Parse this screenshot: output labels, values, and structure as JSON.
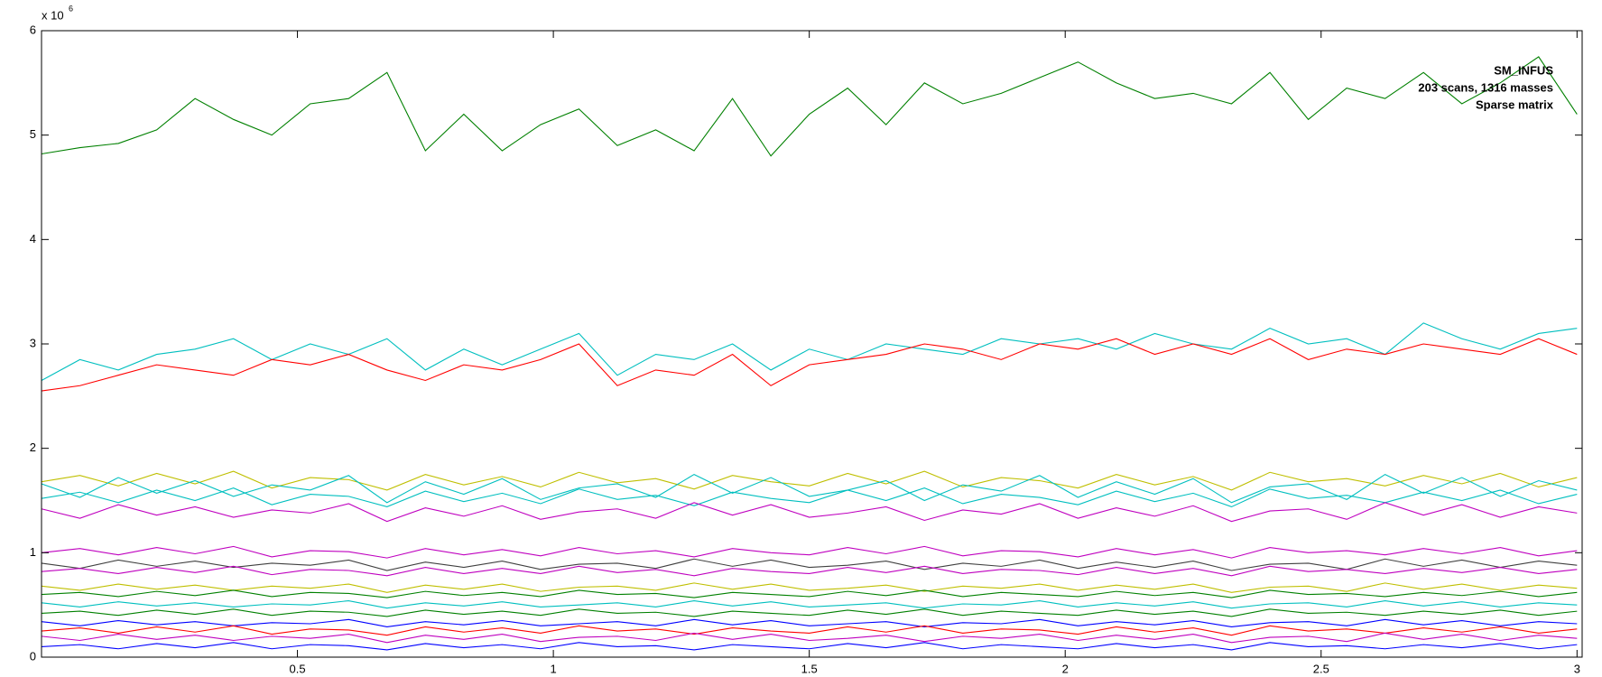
{
  "chart_data": {
    "type": "line",
    "axis_multiplier": {
      "base": "x 10",
      "power": "6"
    },
    "annotations": [
      "SM_INFUS",
      "203 scans, 1316 masses",
      "Sparse matrix"
    ],
    "x": [
      0,
      0.075,
      0.15,
      0.225,
      0.3,
      0.375,
      0.45,
      0.525,
      0.6,
      0.675,
      0.75,
      0.825,
      0.9,
      0.975,
      1.05,
      1.125,
      1.2,
      1.275,
      1.35,
      1.425,
      1.5,
      1.575,
      1.65,
      1.725,
      1.8,
      1.875,
      1.95,
      2.025,
      2.1,
      2.175,
      2.25,
      2.325,
      2.4,
      2.475,
      2.55,
      2.625,
      2.7,
      2.775,
      2.85,
      2.925,
      3.0
    ],
    "xlim": [
      0,
      3.01
    ],
    "xticks": [
      0.5,
      1,
      1.5,
      2,
      2.5,
      3
    ],
    "ylim": [
      0,
      6
    ],
    "yticks": [
      0,
      1,
      2,
      3,
      4,
      5,
      6
    ],
    "series": [
      {
        "color": "#008000",
        "values": [
          4.82,
          4.88,
          4.92,
          5.05,
          5.35,
          5.15,
          5.0,
          5.3,
          5.35,
          5.6,
          4.85,
          5.2,
          4.85,
          5.1,
          5.25,
          4.9,
          5.05,
          4.85,
          5.35,
          4.8,
          5.2,
          5.45,
          5.1,
          5.5,
          5.3,
          5.4,
          5.55,
          5.7,
          5.5,
          5.35,
          5.4,
          5.3,
          5.6,
          5.15,
          5.45,
          5.35,
          5.6,
          5.3,
          5.5,
          5.75,
          5.2
        ]
      },
      {
        "color": "#00bfbf",
        "values": [
          2.65,
          2.85,
          2.75,
          2.9,
          2.95,
          3.05,
          2.85,
          3.0,
          2.9,
          3.05,
          2.75,
          2.95,
          2.8,
          2.95,
          3.1,
          2.7,
          2.9,
          2.85,
          3.0,
          2.75,
          2.95,
          2.85,
          3.0,
          2.95,
          2.9,
          3.05,
          3.0,
          3.05,
          2.95,
          3.1,
          3.0,
          2.95,
          3.15,
          3.0,
          3.05,
          2.9,
          3.2,
          3.05,
          2.95,
          3.1,
          3.15
        ]
      },
      {
        "color": "#ff0000",
        "values": [
          2.55,
          2.6,
          2.7,
          2.8,
          2.75,
          2.7,
          2.85,
          2.8,
          2.9,
          2.75,
          2.65,
          2.8,
          2.75,
          2.85,
          3.0,
          2.6,
          2.75,
          2.7,
          2.9,
          2.6,
          2.8,
          2.85,
          2.9,
          3.0,
          2.95,
          2.85,
          3.0,
          2.95,
          3.05,
          2.9,
          3.0,
          2.9,
          3.05,
          2.85,
          2.95,
          2.9,
          3.0,
          2.95,
          2.9,
          3.05,
          2.9
        ]
      },
      {
        "color": "#bfbf00",
        "values": [
          1.68,
          1.74,
          1.64,
          1.76,
          1.66,
          1.78,
          1.62,
          1.72,
          1.7,
          1.6,
          1.75,
          1.65,
          1.73,
          1.63,
          1.77,
          1.67,
          1.71,
          1.61,
          1.74,
          1.68,
          1.64,
          1.76,
          1.66,
          1.78,
          1.63,
          1.72,
          1.69,
          1.62,
          1.75,
          1.65,
          1.73,
          1.6,
          1.77,
          1.68,
          1.71,
          1.64,
          1.74,
          1.66,
          1.76,
          1.63,
          1.72
        ]
      },
      {
        "color": "#00bfbf",
        "values": [
          1.66,
          1.53,
          1.72,
          1.57,
          1.69,
          1.54,
          1.65,
          1.6,
          1.74,
          1.48,
          1.68,
          1.56,
          1.71,
          1.51,
          1.62,
          1.66,
          1.53,
          1.75,
          1.57,
          1.72,
          1.54,
          1.6,
          1.69,
          1.5,
          1.65,
          1.59,
          1.74,
          1.53,
          1.68,
          1.56,
          1.71,
          1.48,
          1.63,
          1.66,
          1.51,
          1.75,
          1.57,
          1.72,
          1.54,
          1.69,
          1.6
        ]
      },
      {
        "color": "#00bfbf",
        "values": [
          1.52,
          1.58,
          1.48,
          1.6,
          1.5,
          1.62,
          1.46,
          1.56,
          1.54,
          1.44,
          1.59,
          1.49,
          1.57,
          1.47,
          1.61,
          1.51,
          1.55,
          1.45,
          1.58,
          1.52,
          1.48,
          1.6,
          1.5,
          1.62,
          1.47,
          1.56,
          1.53,
          1.46,
          1.59,
          1.49,
          1.57,
          1.44,
          1.61,
          1.52,
          1.55,
          1.48,
          1.58,
          1.5,
          1.6,
          1.47,
          1.56
        ]
      },
      {
        "color": "#bf00bf",
        "values": [
          1.42,
          1.33,
          1.46,
          1.36,
          1.44,
          1.34,
          1.41,
          1.38,
          1.47,
          1.3,
          1.43,
          1.35,
          1.45,
          1.32,
          1.39,
          1.42,
          1.33,
          1.48,
          1.36,
          1.46,
          1.34,
          1.38,
          1.44,
          1.31,
          1.41,
          1.37,
          1.47,
          1.33,
          1.43,
          1.35,
          1.45,
          1.3,
          1.4,
          1.42,
          1.32,
          1.48,
          1.36,
          1.46,
          1.34,
          1.44,
          1.38
        ]
      },
      {
        "color": "#bf00bf",
        "values": [
          1.0,
          1.04,
          0.98,
          1.05,
          0.99,
          1.06,
          0.96,
          1.02,
          1.01,
          0.95,
          1.04,
          0.98,
          1.03,
          0.97,
          1.05,
          0.99,
          1.02,
          0.96,
          1.04,
          1.0,
          0.98,
          1.05,
          0.99,
          1.06,
          0.97,
          1.02,
          1.01,
          0.96,
          1.04,
          0.98,
          1.03,
          0.95,
          1.05,
          1.0,
          1.02,
          0.98,
          1.04,
          0.99,
          1.05,
          0.97,
          1.02
        ]
      },
      {
        "color": "#404040",
        "values": [
          0.9,
          0.85,
          0.93,
          0.87,
          0.92,
          0.86,
          0.9,
          0.88,
          0.93,
          0.83,
          0.91,
          0.86,
          0.92,
          0.84,
          0.89,
          0.9,
          0.85,
          0.94,
          0.87,
          0.93,
          0.86,
          0.88,
          0.92,
          0.84,
          0.9,
          0.87,
          0.93,
          0.85,
          0.91,
          0.86,
          0.92,
          0.83,
          0.89,
          0.9,
          0.84,
          0.94,
          0.87,
          0.93,
          0.86,
          0.92,
          0.88
        ]
      },
      {
        "color": "#bf00bf",
        "values": [
          0.82,
          0.85,
          0.8,
          0.86,
          0.81,
          0.87,
          0.79,
          0.84,
          0.83,
          0.78,
          0.86,
          0.8,
          0.85,
          0.8,
          0.87,
          0.81,
          0.84,
          0.78,
          0.85,
          0.82,
          0.8,
          0.86,
          0.81,
          0.87,
          0.8,
          0.84,
          0.83,
          0.79,
          0.86,
          0.8,
          0.85,
          0.78,
          0.87,
          0.82,
          0.84,
          0.8,
          0.85,
          0.81,
          0.86,
          0.8,
          0.84
        ]
      },
      {
        "color": "#bfbf00",
        "values": [
          0.68,
          0.64,
          0.7,
          0.65,
          0.69,
          0.64,
          0.68,
          0.66,
          0.7,
          0.62,
          0.69,
          0.65,
          0.7,
          0.63,
          0.67,
          0.68,
          0.64,
          0.71,
          0.65,
          0.7,
          0.64,
          0.66,
          0.69,
          0.63,
          0.68,
          0.66,
          0.7,
          0.64,
          0.69,
          0.65,
          0.7,
          0.62,
          0.67,
          0.68,
          0.63,
          0.71,
          0.65,
          0.7,
          0.64,
          0.69,
          0.66
        ]
      },
      {
        "color": "#008000",
        "values": [
          0.6,
          0.62,
          0.58,
          0.63,
          0.59,
          0.64,
          0.58,
          0.62,
          0.61,
          0.57,
          0.63,
          0.59,
          0.62,
          0.58,
          0.64,
          0.6,
          0.61,
          0.57,
          0.62,
          0.6,
          0.58,
          0.63,
          0.59,
          0.64,
          0.58,
          0.62,
          0.6,
          0.58,
          0.63,
          0.59,
          0.62,
          0.57,
          0.64,
          0.6,
          0.61,
          0.58,
          0.62,
          0.59,
          0.63,
          0.58,
          0.62
        ]
      },
      {
        "color": "#00bfbf",
        "values": [
          0.52,
          0.48,
          0.53,
          0.49,
          0.52,
          0.48,
          0.51,
          0.5,
          0.54,
          0.47,
          0.52,
          0.49,
          0.53,
          0.48,
          0.5,
          0.52,
          0.48,
          0.54,
          0.49,
          0.53,
          0.48,
          0.5,
          0.52,
          0.47,
          0.51,
          0.5,
          0.54,
          0.48,
          0.52,
          0.49,
          0.53,
          0.47,
          0.51,
          0.52,
          0.48,
          0.54,
          0.49,
          0.53,
          0.48,
          0.52,
          0.5
        ]
      },
      {
        "color": "#008000",
        "values": [
          0.42,
          0.44,
          0.4,
          0.45,
          0.41,
          0.46,
          0.4,
          0.44,
          0.43,
          0.39,
          0.45,
          0.41,
          0.44,
          0.4,
          0.46,
          0.42,
          0.43,
          0.39,
          0.44,
          0.42,
          0.4,
          0.45,
          0.41,
          0.46,
          0.4,
          0.44,
          0.42,
          0.4,
          0.45,
          0.41,
          0.44,
          0.39,
          0.46,
          0.42,
          0.43,
          0.4,
          0.44,
          0.41,
          0.45,
          0.4,
          0.44
        ]
      },
      {
        "color": "#0000ff",
        "values": [
          0.34,
          0.3,
          0.35,
          0.31,
          0.34,
          0.3,
          0.33,
          0.32,
          0.36,
          0.29,
          0.34,
          0.31,
          0.35,
          0.3,
          0.32,
          0.34,
          0.3,
          0.36,
          0.31,
          0.35,
          0.3,
          0.32,
          0.34,
          0.29,
          0.33,
          0.32,
          0.36,
          0.3,
          0.34,
          0.31,
          0.35,
          0.29,
          0.33,
          0.34,
          0.3,
          0.36,
          0.31,
          0.35,
          0.3,
          0.34,
          0.32
        ]
      },
      {
        "color": "#ff0000",
        "values": [
          0.25,
          0.28,
          0.23,
          0.29,
          0.24,
          0.3,
          0.22,
          0.27,
          0.26,
          0.21,
          0.29,
          0.24,
          0.28,
          0.23,
          0.3,
          0.25,
          0.27,
          0.22,
          0.28,
          0.25,
          0.23,
          0.29,
          0.24,
          0.3,
          0.23,
          0.27,
          0.26,
          0.22,
          0.29,
          0.24,
          0.28,
          0.21,
          0.3,
          0.25,
          0.27,
          0.23,
          0.28,
          0.24,
          0.29,
          0.23,
          0.27
        ]
      },
      {
        "color": "#bf00bf",
        "values": [
          0.2,
          0.16,
          0.22,
          0.17,
          0.21,
          0.16,
          0.2,
          0.18,
          0.22,
          0.14,
          0.21,
          0.17,
          0.22,
          0.15,
          0.19,
          0.2,
          0.16,
          0.23,
          0.17,
          0.22,
          0.16,
          0.18,
          0.21,
          0.15,
          0.2,
          0.18,
          0.22,
          0.16,
          0.21,
          0.17,
          0.22,
          0.14,
          0.19,
          0.2,
          0.15,
          0.23,
          0.17,
          0.22,
          0.16,
          0.21,
          0.18
        ]
      },
      {
        "color": "#0000ff",
        "values": [
          0.1,
          0.12,
          0.08,
          0.13,
          0.09,
          0.14,
          0.08,
          0.12,
          0.11,
          0.07,
          0.13,
          0.09,
          0.12,
          0.08,
          0.14,
          0.1,
          0.11,
          0.07,
          0.12,
          0.1,
          0.08,
          0.13,
          0.09,
          0.14,
          0.08,
          0.12,
          0.1,
          0.08,
          0.13,
          0.09,
          0.12,
          0.07,
          0.14,
          0.1,
          0.11,
          0.08,
          0.12,
          0.09,
          0.13,
          0.08,
          0.12
        ]
      }
    ]
  }
}
